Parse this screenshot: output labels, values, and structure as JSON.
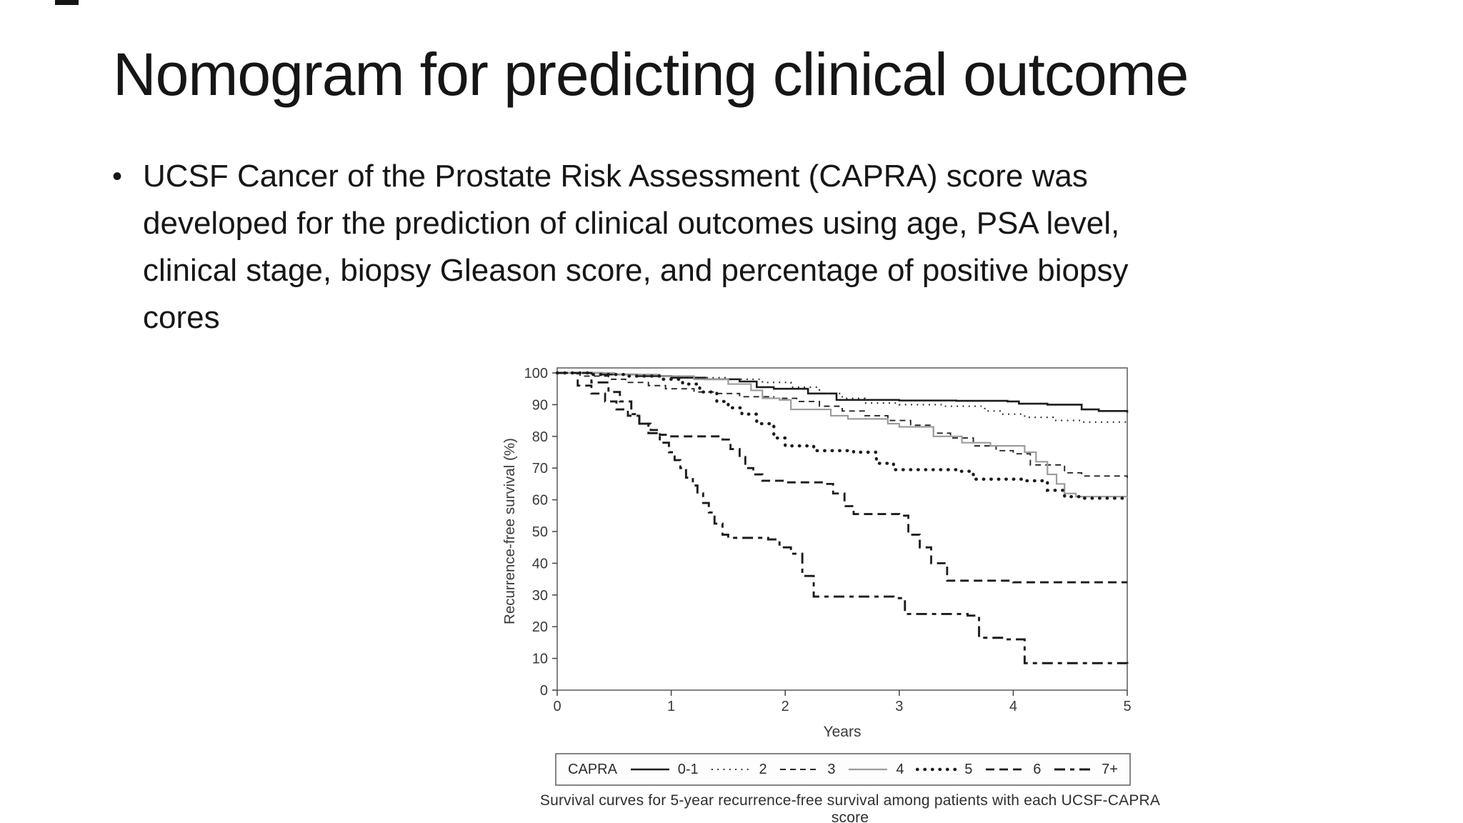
{
  "slide": {
    "title": "Nomogram for predicting clinical outcome",
    "bullet": {
      "marker": "•",
      "lines": [
        "UCSF Cancer of the Prostate Risk Assessment (CAPRA) score was",
        "developed for the prediction of clinical outcomes using age, PSA level,",
        "clinical stage, biopsy Gleason score, and percentage of positive biopsy",
        "cores"
      ]
    }
  },
  "figure": {
    "legend_title": "CAPRA",
    "caption": "Survival curves for 5-year recurrence-free survival among patients with each UCSF-CAPRA score"
  },
  "chart_data": {
    "type": "line",
    "subtype": "kaplan-meier-step",
    "title": "",
    "xlabel": "Years",
    "ylabel": "Recurrence-free survival (%)",
    "xlim": [
      0,
      5
    ],
    "ylim": [
      0,
      100
    ],
    "x_ticks": [
      0,
      1,
      2,
      3,
      4,
      5
    ],
    "y_ticks": [
      0,
      10,
      20,
      30,
      40,
      50,
      60,
      70,
      80,
      90,
      100
    ],
    "grid": false,
    "legend_position": "bottom-box",
    "axis_color": "#444444",
    "box_color": "#5a5a5a",
    "series": [
      {
        "label": "0-1",
        "line": "solid",
        "color": "#1c1c1c",
        "stroke_width": 2.6,
        "dash": null,
        "points": [
          [
            0,
            100
          ],
          [
            0.4,
            99.5
          ],
          [
            0.7,
            99
          ],
          [
            1.0,
            98.5
          ],
          [
            1.3,
            98
          ],
          [
            1.6,
            97.3
          ],
          [
            1.75,
            95.5
          ],
          [
            1.9,
            95
          ],
          [
            2.2,
            93.5
          ],
          [
            2.45,
            91.5
          ],
          [
            3.0,
            91.3
          ],
          [
            3.5,
            91.2
          ],
          [
            3.95,
            91
          ],
          [
            4.05,
            90.3
          ],
          [
            4.3,
            90
          ],
          [
            4.6,
            88.5
          ],
          [
            4.75,
            88
          ],
          [
            5,
            87.5
          ]
        ]
      },
      {
        "label": "2",
        "line": "fine-dotted",
        "color": "#262626",
        "stroke_width": 2.1,
        "dash": "1.8 6.5",
        "points": [
          [
            0,
            100
          ],
          [
            0.5,
            99.5
          ],
          [
            0.8,
            99
          ],
          [
            1.1,
            98.5
          ],
          [
            1.5,
            98
          ],
          [
            1.8,
            97
          ],
          [
            2.05,
            95.5
          ],
          [
            2.3,
            93.5
          ],
          [
            2.5,
            92
          ],
          [
            2.7,
            90.5
          ],
          [
            3.0,
            90
          ],
          [
            3.4,
            89.5
          ],
          [
            3.75,
            88
          ],
          [
            3.9,
            87
          ],
          [
            4.1,
            86
          ],
          [
            4.35,
            85
          ],
          [
            4.6,
            84.5
          ],
          [
            5,
            84
          ]
        ]
      },
      {
        "label": "3",
        "line": "dashed",
        "color": "#262626",
        "stroke_width": 1.9,
        "dash": "8 6",
        "points": [
          [
            0,
            100
          ],
          [
            0.2,
            99
          ],
          [
            0.45,
            98
          ],
          [
            0.6,
            97
          ],
          [
            0.8,
            96
          ],
          [
            0.95,
            95
          ],
          [
            1.2,
            94
          ],
          [
            1.4,
            93.5
          ],
          [
            1.6,
            92.5
          ],
          [
            1.9,
            92
          ],
          [
            2.1,
            91
          ],
          [
            2.3,
            89.5
          ],
          [
            2.5,
            88
          ],
          [
            2.7,
            86.5
          ],
          [
            2.9,
            85
          ],
          [
            3.1,
            83.5
          ],
          [
            3.3,
            81
          ],
          [
            3.45,
            79.5
          ],
          [
            3.65,
            77
          ],
          [
            3.85,
            75.5
          ],
          [
            4.0,
            74.5
          ],
          [
            4.15,
            71
          ],
          [
            4.45,
            68.5
          ],
          [
            4.6,
            67.5
          ],
          [
            5,
            67
          ]
        ]
      },
      {
        "label": "4",
        "line": "solid-gray",
        "color": "#9c9c9c",
        "stroke_width": 2.2,
        "dash": null,
        "points": [
          [
            0,
            100
          ],
          [
            0.5,
            99.5
          ],
          [
            0.9,
            99
          ],
          [
            1.2,
            98
          ],
          [
            1.5,
            96.5
          ],
          [
            1.7,
            94.5
          ],
          [
            1.8,
            92
          ],
          [
            1.95,
            91.5
          ],
          [
            2.05,
            88.5
          ],
          [
            2.4,
            86.5
          ],
          [
            2.55,
            85.5
          ],
          [
            2.9,
            84
          ],
          [
            3.0,
            83
          ],
          [
            3.3,
            80
          ],
          [
            3.55,
            78
          ],
          [
            3.8,
            77
          ],
          [
            4.1,
            75
          ],
          [
            4.2,
            72
          ],
          [
            4.3,
            68
          ],
          [
            4.38,
            65
          ],
          [
            4.45,
            62
          ],
          [
            4.55,
            61
          ],
          [
            5,
            60.5
          ]
        ]
      },
      {
        "label": "5",
        "line": "bold-dotted",
        "color": "#1c1c1c",
        "stroke_width": 4.4,
        "dash": "0.5 10",
        "linecap": "round",
        "points": [
          [
            0,
            100
          ],
          [
            0.3,
            99.5
          ],
          [
            0.6,
            99
          ],
          [
            0.9,
            98
          ],
          [
            1.1,
            96.5
          ],
          [
            1.25,
            94
          ],
          [
            1.4,
            91
          ],
          [
            1.5,
            89
          ],
          [
            1.62,
            87
          ],
          [
            1.75,
            84
          ],
          [
            1.9,
            79.5
          ],
          [
            2.0,
            77
          ],
          [
            2.25,
            75.5
          ],
          [
            2.6,
            75
          ],
          [
            2.8,
            71.5
          ],
          [
            2.95,
            69.5
          ],
          [
            3.5,
            69
          ],
          [
            3.65,
            66.5
          ],
          [
            4.1,
            66
          ],
          [
            4.3,
            63
          ],
          [
            4.45,
            61
          ],
          [
            4.6,
            60.5
          ],
          [
            5,
            60
          ]
        ]
      },
      {
        "label": "6",
        "line": "bold-dashed",
        "color": "#1c1c1c",
        "stroke_width": 2.8,
        "dash": "12 7",
        "points": [
          [
            0,
            100
          ],
          [
            0.18,
            96
          ],
          [
            0.3,
            93.5
          ],
          [
            0.42,
            91
          ],
          [
            0.52,
            88.5
          ],
          [
            0.62,
            86.5
          ],
          [
            0.72,
            84
          ],
          [
            0.82,
            82
          ],
          [
            0.9,
            80.5
          ],
          [
            1.0,
            80
          ],
          [
            1.45,
            79
          ],
          [
            1.52,
            76
          ],
          [
            1.6,
            73.5
          ],
          [
            1.65,
            70
          ],
          [
            1.72,
            68
          ],
          [
            1.8,
            66
          ],
          [
            2.0,
            65.5
          ],
          [
            2.35,
            65
          ],
          [
            2.42,
            62
          ],
          [
            2.52,
            58
          ],
          [
            2.6,
            55.5
          ],
          [
            3.0,
            55
          ],
          [
            3.08,
            49
          ],
          [
            3.18,
            45
          ],
          [
            3.28,
            40
          ],
          [
            3.42,
            34.5
          ],
          [
            4.0,
            34
          ],
          [
            5,
            34
          ]
        ]
      },
      {
        "label": "7+",
        "line": "long-dashed",
        "color": "#1c1c1c",
        "stroke_width": 2.9,
        "dash": "15 7 6 7",
        "points": [
          [
            0,
            100
          ],
          [
            0.3,
            97
          ],
          [
            0.45,
            94
          ],
          [
            0.55,
            91
          ],
          [
            0.65,
            87
          ],
          [
            0.72,
            84
          ],
          [
            0.8,
            81
          ],
          [
            0.9,
            78
          ],
          [
            0.98,
            75
          ],
          [
            1.03,
            72.5
          ],
          [
            1.08,
            70
          ],
          [
            1.13,
            67
          ],
          [
            1.19,
            64.5
          ],
          [
            1.23,
            62
          ],
          [
            1.28,
            59
          ],
          [
            1.33,
            56
          ],
          [
            1.38,
            52.5
          ],
          [
            1.45,
            49
          ],
          [
            1.5,
            48
          ],
          [
            1.85,
            47.5
          ],
          [
            1.95,
            45
          ],
          [
            2.05,
            43
          ],
          [
            2.15,
            36
          ],
          [
            2.25,
            29.5
          ],
          [
            2.95,
            29
          ],
          [
            3.05,
            24
          ],
          [
            3.6,
            23.5
          ],
          [
            3.7,
            16.5
          ],
          [
            3.95,
            16
          ],
          [
            4.1,
            8.5
          ],
          [
            5,
            8
          ]
        ]
      }
    ]
  }
}
